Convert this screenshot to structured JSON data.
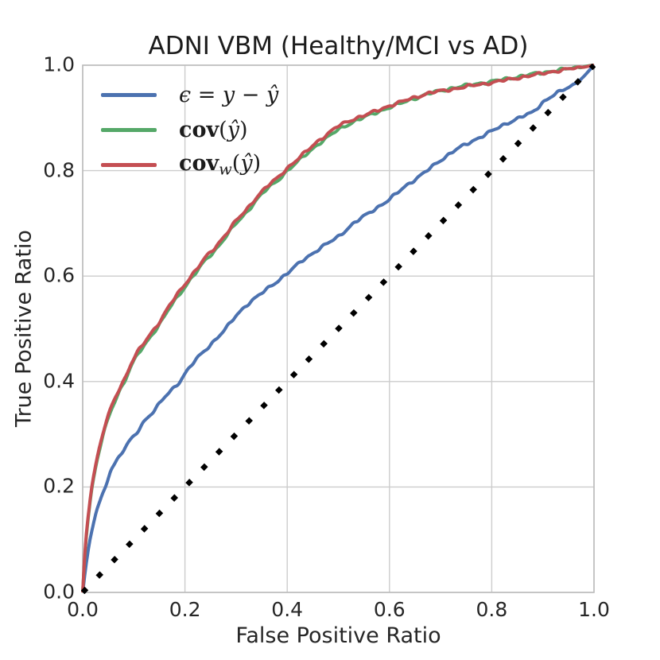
{
  "title": "ADNI VBM (Healthy/MCI vs AD)",
  "chart_data": {
    "type": "line",
    "title": "ADNI VBM (Healthy/MCI vs AD)",
    "xlabel": "False Positive Ratio",
    "ylabel": "True Positive Ratio",
    "xlim": [
      0,
      1
    ],
    "ylim": [
      0,
      1
    ],
    "xticks": [
      0.0,
      0.2,
      0.4,
      0.6,
      0.8,
      1.0
    ],
    "yticks": [
      0.0,
      0.2,
      0.4,
      0.6,
      0.8,
      1.0
    ],
    "grid": true,
    "grid_color": "#cccccc",
    "spine_color": "#bdbdbd",
    "legend_position": "upper-left",
    "series": [
      {
        "id": "residual",
        "legend": "ϵ = y − ŷ",
        "color": "#4C72B0",
        "line_width": 4,
        "dashed": false,
        "points": [
          [
            0,
            0
          ],
          [
            0.006,
            0.05
          ],
          [
            0.014,
            0.1
          ],
          [
            0.028,
            0.16
          ],
          [
            0.045,
            0.2
          ],
          [
            0.055,
            0.235
          ],
          [
            0.07,
            0.255
          ],
          [
            0.09,
            0.285
          ],
          [
            0.104,
            0.3
          ],
          [
            0.12,
            0.325
          ],
          [
            0.14,
            0.345
          ],
          [
            0.16,
            0.37
          ],
          [
            0.175,
            0.385
          ],
          [
            0.19,
            0.4
          ],
          [
            0.2,
            0.415
          ],
          [
            0.22,
            0.44
          ],
          [
            0.24,
            0.46
          ],
          [
            0.26,
            0.48
          ],
          [
            0.28,
            0.5
          ],
          [
            0.3,
            0.525
          ],
          [
            0.32,
            0.545
          ],
          [
            0.34,
            0.56
          ],
          [
            0.36,
            0.575
          ],
          [
            0.38,
            0.59
          ],
          [
            0.4,
            0.605
          ],
          [
            0.43,
            0.63
          ],
          [
            0.46,
            0.65
          ],
          [
            0.5,
            0.675
          ],
          [
            0.53,
            0.7
          ],
          [
            0.56,
            0.72
          ],
          [
            0.6,
            0.745
          ],
          [
            0.63,
            0.77
          ],
          [
            0.66,
            0.79
          ],
          [
            0.7,
            0.82
          ],
          [
            0.73,
            0.84
          ],
          [
            0.76,
            0.855
          ],
          [
            0.8,
            0.875
          ],
          [
            0.83,
            0.89
          ],
          [
            0.86,
            0.903
          ],
          [
            0.88,
            0.91
          ],
          [
            0.9,
            0.93
          ],
          [
            0.92,
            0.943
          ],
          [
            0.94,
            0.953
          ],
          [
            0.96,
            0.963
          ],
          [
            0.98,
            0.978
          ],
          [
            1,
            1
          ]
        ]
      },
      {
        "id": "cov",
        "legend": "cov(ŷ)",
        "color": "#55A868",
        "line_width": 4,
        "dashed": false,
        "points": [
          [
            0,
            0
          ],
          [
            0.003,
            0.06
          ],
          [
            0.008,
            0.12
          ],
          [
            0.013,
            0.16
          ],
          [
            0.018,
            0.2
          ],
          [
            0.028,
            0.25
          ],
          [
            0.04,
            0.3
          ],
          [
            0.055,
            0.345
          ],
          [
            0.068,
            0.375
          ],
          [
            0.082,
            0.4
          ],
          [
            0.095,
            0.43
          ],
          [
            0.11,
            0.455
          ],
          [
            0.125,
            0.475
          ],
          [
            0.14,
            0.495
          ],
          [
            0.155,
            0.515
          ],
          [
            0.17,
            0.54
          ],
          [
            0.185,
            0.56
          ],
          [
            0.2,
            0.58
          ],
          [
            0.22,
            0.605
          ],
          [
            0.24,
            0.63
          ],
          [
            0.26,
            0.65
          ],
          [
            0.28,
            0.675
          ],
          [
            0.3,
            0.7
          ],
          [
            0.32,
            0.72
          ],
          [
            0.34,
            0.745
          ],
          [
            0.36,
            0.765
          ],
          [
            0.38,
            0.78
          ],
          [
            0.4,
            0.8
          ],
          [
            0.43,
            0.825
          ],
          [
            0.46,
            0.85
          ],
          [
            0.5,
            0.878
          ],
          [
            0.53,
            0.893
          ],
          [
            0.56,
            0.905
          ],
          [
            0.6,
            0.92
          ],
          [
            0.64,
            0.934
          ],
          [
            0.68,
            0.947
          ],
          [
            0.72,
            0.956
          ],
          [
            0.76,
            0.963
          ],
          [
            0.8,
            0.969
          ],
          [
            0.84,
            0.976
          ],
          [
            0.88,
            0.983
          ],
          [
            0.92,
            0.989
          ],
          [
            0.96,
            0.995
          ],
          [
            1,
            1
          ]
        ]
      },
      {
        "id": "cov-weighted",
        "legend": "cov_w(ŷ)",
        "color": "#C44E52",
        "line_width": 4,
        "dashed": false,
        "points": [
          [
            0,
            0
          ],
          [
            0.003,
            0.065
          ],
          [
            0.008,
            0.125
          ],
          [
            0.013,
            0.165
          ],
          [
            0.018,
            0.205
          ],
          [
            0.028,
            0.255
          ],
          [
            0.04,
            0.305
          ],
          [
            0.055,
            0.35
          ],
          [
            0.068,
            0.38
          ],
          [
            0.082,
            0.405
          ],
          [
            0.095,
            0.435
          ],
          [
            0.11,
            0.46
          ],
          [
            0.125,
            0.48
          ],
          [
            0.14,
            0.5
          ],
          [
            0.155,
            0.52
          ],
          [
            0.17,
            0.545
          ],
          [
            0.185,
            0.565
          ],
          [
            0.2,
            0.585
          ],
          [
            0.22,
            0.61
          ],
          [
            0.24,
            0.635
          ],
          [
            0.26,
            0.655
          ],
          [
            0.28,
            0.68
          ],
          [
            0.3,
            0.705
          ],
          [
            0.32,
            0.725
          ],
          [
            0.34,
            0.75
          ],
          [
            0.36,
            0.77
          ],
          [
            0.38,
            0.785
          ],
          [
            0.4,
            0.805
          ],
          [
            0.43,
            0.83
          ],
          [
            0.46,
            0.856
          ],
          [
            0.5,
            0.885
          ],
          [
            0.53,
            0.898
          ],
          [
            0.56,
            0.908
          ],
          [
            0.6,
            0.923
          ],
          [
            0.64,
            0.936
          ],
          [
            0.68,
            0.948
          ],
          [
            0.72,
            0.954
          ],
          [
            0.76,
            0.961
          ],
          [
            0.8,
            0.967
          ],
          [
            0.84,
            0.974
          ],
          [
            0.88,
            0.981
          ],
          [
            0.92,
            0.988
          ],
          [
            0.96,
            0.994
          ],
          [
            1,
            1
          ]
        ]
      },
      {
        "id": "chance-diagonal",
        "legend": null,
        "color": "#000000",
        "line_width": 6.5,
        "dashed": true,
        "points": [
          [
            0,
            0
          ],
          [
            1,
            1
          ]
        ]
      }
    ]
  },
  "legend": {
    "items": [
      {
        "series": "residual",
        "color": "#4C72B0",
        "parts": [
          {
            "text": "ϵ",
            "italic": true
          },
          {
            "text": " = "
          },
          {
            "text": "y",
            "italic": true
          },
          {
            "text": " − "
          },
          {
            "text": "ŷ",
            "italic": true
          }
        ]
      },
      {
        "series": "cov",
        "color": "#55A868",
        "parts": [
          {
            "text": "cov",
            "bold": true
          },
          {
            "text": "("
          },
          {
            "text": "ŷ",
            "italic": true
          },
          {
            "text": ")"
          }
        ]
      },
      {
        "series": "cov-weighted",
        "color": "#C44E52",
        "parts": [
          {
            "text": "cov",
            "bold": true
          },
          {
            "text": "w",
            "sub": true
          },
          {
            "text": "("
          },
          {
            "text": "ŷ",
            "italic": true
          },
          {
            "text": ")"
          }
        ]
      }
    ]
  }
}
